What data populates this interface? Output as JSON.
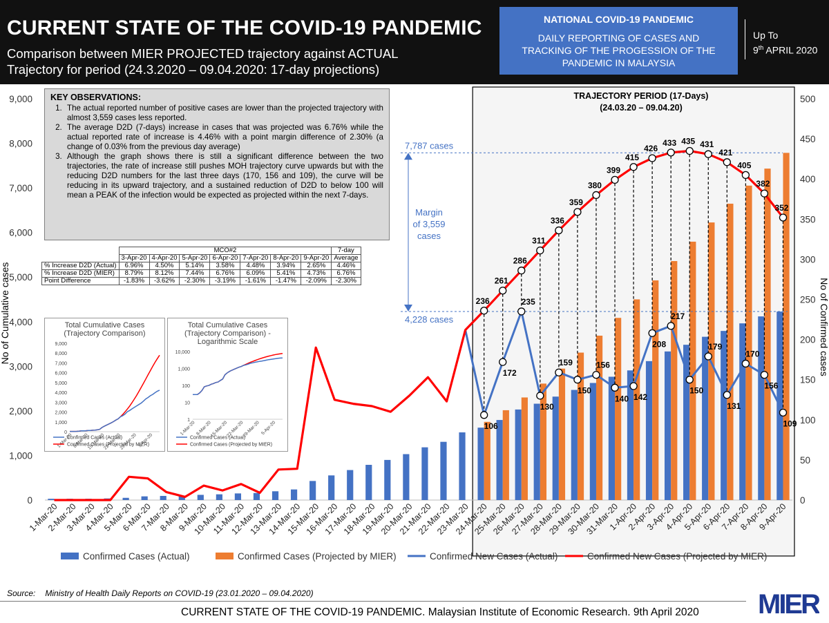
{
  "header": {
    "title": "CURRENT STATE OF THE COVID-19 PANDEMIC",
    "subtitle_line1": "Comparison between MIER PROJECTED trajectory against ACTUAL",
    "subtitle_line2": "Trajectory for period (24.3.2020 – 09.04.2020: 17-day projections)",
    "box_title": "NATIONAL COVID-19 PANDEMIC",
    "box_line1": "DAILY REPORTING OF CASES AND",
    "box_line2": "TRACKING OF THE PROGESSION OF THE",
    "box_line3": "PANDEMIC IN MALAYSIA",
    "upto_label": "Up To",
    "upto_day": "9",
    "upto_sup": "th",
    "upto_rest": " APRIL 2020"
  },
  "observations": {
    "title": "KEY OBSERVATIONS:",
    "items": [
      "The actual reported number of positive cases are lower than the projected trajectory with almost 3,559 cases less reported.",
      "The average D2D (7-days) increase in cases that was projected was 6.76% while the actual reported rate of increase is 4.46% with a point margin difference of 2.30% (a change of 0.03% from the previous day average)",
      "Although the graph shows there is still a significant difference between the two trajectories, the rate of increase still pushes MOH trajectory curve upwards but with the reducing D2D numbers for the last three days (170, 156 and 109), the curve will be reducing in its upward trajectory, and a sustained reduction of D2D to below 100 will mean a PEAK of the infection would be expected as projected within the next 7-days."
    ]
  },
  "mco_table": {
    "group": "MCO#2",
    "dates": [
      "3-Apr-20",
      "4-Apr-20",
      "5-Apr-20",
      "6-Apr-20",
      "7-Apr-20",
      "8-Apr-20",
      "9-Apr-20"
    ],
    "avg_header1": "7-day",
    "avg_header2": "Average",
    "rows": [
      {
        "label": "% Increase D2D (Actual)",
        "values": [
          "6.96%",
          "4.50%",
          "5.14%",
          "3.58%",
          "4.48%",
          "3.94%",
          "2.65%",
          "4.46%"
        ]
      },
      {
        "label": "% Increase D2D (MIER)",
        "values": [
          "8.79%",
          "8.12%",
          "7.44%",
          "6.76%",
          "6.09%",
          "5.41%",
          "4.73%",
          "6.76%"
        ]
      },
      {
        "label": "Point Difference",
        "values": [
          "-1.83%",
          "-3.62%",
          "-2.30%",
          "-3.19%",
          "-1.61%",
          "-1.47%",
          "-2.09%",
          "-2.30%"
        ]
      }
    ]
  },
  "mini_charts": {
    "linear_title1": "Total Cumulative Cases",
    "linear_title2": "(Trajectory Comparison)",
    "log_title1": "Total Cumulative Cases",
    "log_title2": "(Trajectory Comparison) -",
    "log_title3": "Logarithmic Scale",
    "legend_actual": "Confirmed Cases (Actual)",
    "legend_projected": "Confirmed Cases (Projected by MIER)",
    "x_ticks": [
      "1-Mar-20",
      "8-Mar-20",
      "15-Mar-20",
      "22-Mar-20",
      "29-Mar-20",
      "5-Apr-20"
    ],
    "linear_y_ticks": [
      "0",
      "1,000",
      "2,000",
      "3,000",
      "4,000",
      "5,000",
      "6,000",
      "7,000",
      "8,000",
      "9,000"
    ],
    "log_y_ticks": [
      "1",
      "10",
      "100",
      "1,000",
      "10,000"
    ]
  },
  "chart_data": {
    "type": "bar",
    "categories": [
      "1-Mar-20",
      "2-Mar-20",
      "3-Mar-20",
      "4-Mar-20",
      "5-Mar-20",
      "6-Mar-20",
      "7-Mar-20",
      "8-Mar-20",
      "9-Mar-20",
      "10-Mar-20",
      "11-Mar-20",
      "12-Mar-20",
      "13-Mar-20",
      "14-Mar-20",
      "15-Mar-20",
      "16-Mar-20",
      "17-Mar-20",
      "18-Mar-20",
      "19-Mar-20",
      "20-Mar-20",
      "21-Mar-20",
      "22-Mar-20",
      "23-Mar-20",
      "24-Mar-20",
      "25-Mar-20",
      "26-Mar-20",
      "27-Mar-20",
      "28-Mar-20",
      "29-Mar-20",
      "30-Mar-20",
      "31-Mar-20",
      "1-Apr-20",
      "2-Apr-20",
      "3-Apr-20",
      "4-Apr-20",
      "5-Apr-20",
      "6-Apr-20",
      "7-Apr-20",
      "8-Apr-20",
      "9-Apr-20"
    ],
    "series": [
      {
        "name": "Confirmed Cases (Actual)",
        "axis": "left",
        "kind": "bar",
        "color": "#4472c4",
        "values": [
          29,
          29,
          29,
          36,
          50,
          83,
          93,
          99,
          117,
          129,
          149,
          158,
          197,
          238,
          428,
          553,
          673,
          790,
          900,
          1030,
          1183,
          1306,
          1518,
          1624,
          1796,
          2031,
          2161,
          2320,
          2470,
          2626,
          2766,
          2908,
          3116,
          3333,
          3483,
          3662,
          3793,
          3963,
          4119,
          4228
        ]
      },
      {
        "name": "Confirmed Cases (Projected by MIER)",
        "axis": "left",
        "kind": "bar",
        "color": "#ed7d31",
        "values": [
          null,
          null,
          null,
          null,
          null,
          null,
          null,
          null,
          null,
          null,
          null,
          null,
          null,
          null,
          null,
          null,
          null,
          null,
          null,
          null,
          null,
          null,
          null,
          1754,
          2015,
          2301,
          2612,
          2948,
          3307,
          3687,
          4086,
          4501,
          4927,
          5360,
          5795,
          6226,
          6647,
          7052,
          7434,
          7787
        ]
      },
      {
        "name": "Confirmed New Cases (Actual)",
        "axis": "right",
        "kind": "line",
        "color": "#4472c4",
        "values": [
          null,
          null,
          null,
          null,
          null,
          null,
          null,
          null,
          null,
          null,
          null,
          null,
          null,
          null,
          null,
          null,
          null,
          null,
          null,
          null,
          null,
          null,
          212,
          106,
          172,
          235,
          130,
          159,
          150,
          156,
          140,
          142,
          208,
          217,
          150,
          179,
          131,
          170,
          156,
          109
        ]
      },
      {
        "name": "Confirmed New Cases (Projected by MIER)",
        "axis": "right",
        "kind": "line",
        "color": "#ff0000",
        "values": [
          0,
          0,
          0,
          0,
          29,
          27,
          10,
          4,
          18,
          12,
          20,
          9,
          38,
          39,
          190,
          125,
          120,
          117,
          110,
          130,
          153,
          123,
          212,
          236,
          261,
          286,
          311,
          336,
          359,
          380,
          399,
          415,
          426,
          433,
          435,
          431,
          421,
          405,
          382,
          352
        ]
      }
    ],
    "actual_labels": [
      "106",
      "172",
      "235",
      "130",
      "159",
      "150",
      "156",
      "140",
      "142",
      "208",
      "217",
      "150",
      "179",
      "131",
      "170",
      "156",
      "109"
    ],
    "projected_labels": [
      "236",
      "261",
      "286",
      "311",
      "336",
      "359",
      "380",
      "399",
      "415",
      "426",
      "433",
      "435",
      "431",
      "421",
      "405",
      "382",
      "352"
    ],
    "ylabel": "No of Cumulative cases",
    "ylabel_right": "No of Confirmed  cases",
    "ylim": [
      0,
      9000
    ],
    "ylim_right": [
      0,
      500
    ],
    "y_ticks": [
      "0",
      "1,000",
      "2,000",
      "3,000",
      "4,000",
      "5,000",
      "6,000",
      "7,000",
      "8,000",
      "9,000"
    ],
    "y_ticks_right": [
      "0",
      "50",
      "100",
      "150",
      "200",
      "250",
      "300",
      "350",
      "400",
      "450",
      "500"
    ],
    "trajectory_title1": "TRAJECTORY PERIOD (17-Days)",
    "trajectory_title2": "(24.03.20 – 09.04.20)",
    "margin_top_label": "7,787 cases",
    "margin_bottom_label": "4,228 cases",
    "margin_text1": "Margin",
    "margin_text2": "of 3,559",
    "margin_text3": "cases",
    "legend": [
      "Confirmed Cases (Actual)",
      "Confirmed Cases (Projected by MIER)",
      "Confirmed New Cases (Actual)",
      "Confirmed New Cases (Projected by MIER)"
    ]
  },
  "footer": {
    "source_label": "Source:",
    "source_text": "Ministry of Health Daily Reports on COVID-19 (23.01.2020 – 09.04.2020)",
    "bottom_text": "CURRENT STATE OF THE COVID-19 PANDEMIC. Malaysian Institute of Economic Research. 9th April 2020",
    "logo_text": "MIER",
    "logo_color": "#1f3a93"
  }
}
